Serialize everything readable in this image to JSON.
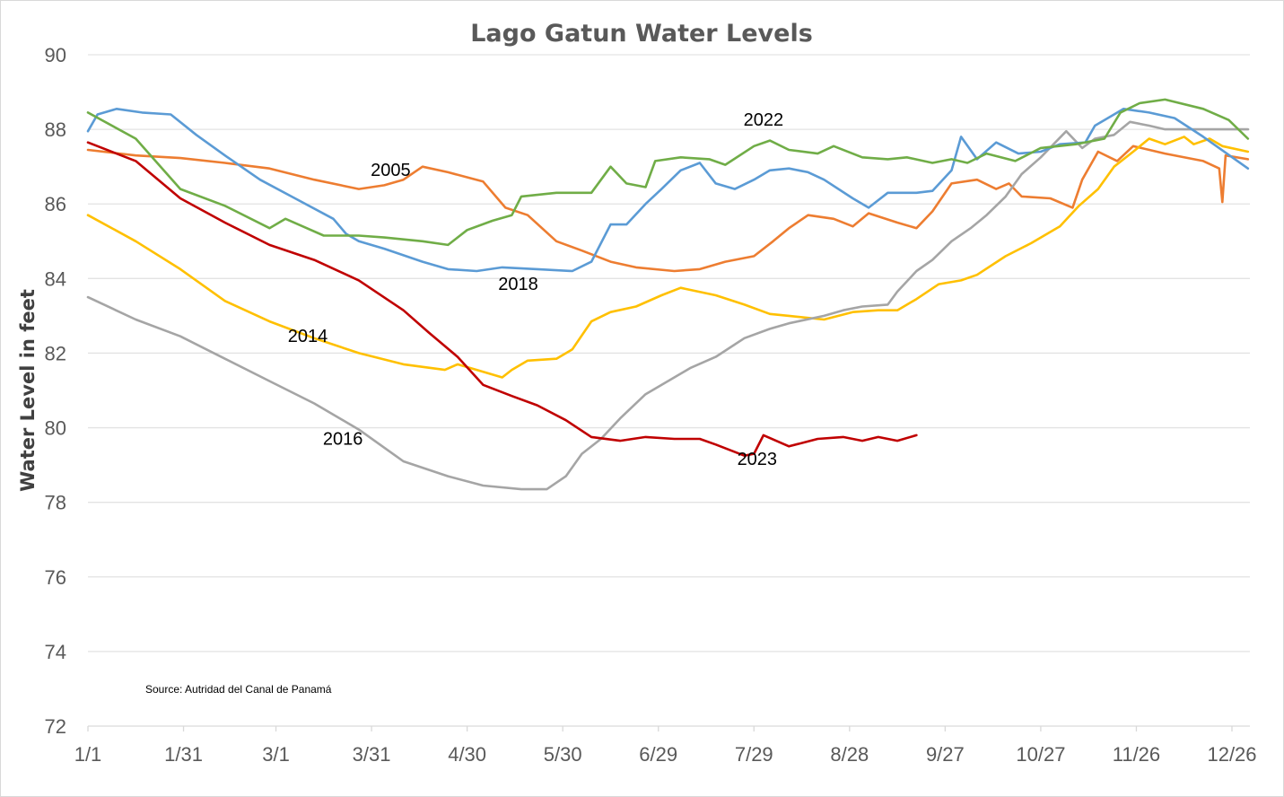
{
  "chart_data": {
    "type": "line",
    "title": "Lago Gatun Water Levels",
    "xlabel": "",
    "ylabel": "Water Level in feet",
    "source_note": "Source: Autridad del Canal de Panamá",
    "x_unit": "day of year (0 = 1/1)",
    "xlim": [
      0,
      364
    ],
    "ylim": [
      72,
      90
    ],
    "y_ticks": [
      72,
      74,
      76,
      78,
      80,
      82,
      84,
      86,
      88,
      90
    ],
    "x_ticks": [
      {
        "day": 0,
        "label": "1/1"
      },
      {
        "day": 30,
        "label": "1/31"
      },
      {
        "day": 59,
        "label": "3/1"
      },
      {
        "day": 89,
        "label": "3/31"
      },
      {
        "day": 119,
        "label": "4/30"
      },
      {
        "day": 149,
        "label": "5/30"
      },
      {
        "day": 179,
        "label": "6/29"
      },
      {
        "day": 209,
        "label": "7/29"
      },
      {
        "day": 239,
        "label": "8/28"
      },
      {
        "day": 269,
        "label": "9/27"
      },
      {
        "day": 299,
        "label": "10/27"
      },
      {
        "day": 329,
        "label": "11/26"
      },
      {
        "day": 359,
        "label": "12/26"
      }
    ],
    "grid": true,
    "legend": "none (inline labels)",
    "series": [
      {
        "name": "2005",
        "color": "#ED7D31",
        "label_at": {
          "day": 95,
          "value": 86.75
        },
        "x": [
          0,
          15,
          29,
          43,
          57,
          71,
          85,
          93,
          99,
          105,
          113,
          124,
          131,
          138,
          147,
          155,
          164,
          172,
          184,
          192,
          200,
          209,
          215,
          220,
          226,
          234,
          240,
          245,
          254,
          260,
          265,
          271,
          279,
          285,
          289,
          293,
          302,
          309,
          312,
          317,
          323,
          328,
          338,
          350,
          355,
          356,
          357,
          364
        ],
        "y": [
          87.45,
          87.3,
          87.23,
          87.1,
          86.95,
          86.65,
          86.4,
          86.5,
          86.65,
          87.0,
          86.85,
          86.6,
          85.9,
          85.7,
          85.0,
          84.75,
          84.45,
          84.3,
          84.2,
          84.25,
          84.45,
          84.6,
          85.0,
          85.35,
          85.7,
          85.6,
          85.4,
          85.75,
          85.5,
          85.35,
          85.8,
          86.55,
          86.65,
          86.4,
          86.55,
          86.2,
          86.15,
          85.9,
          86.65,
          87.4,
          87.15,
          87.55,
          87.35,
          87.15,
          86.95,
          86.05,
          87.3,
          87.2
        ]
      },
      {
        "name": "2014",
        "color": "#FFC000",
        "label_at": {
          "day": 69,
          "value": 82.3
        },
        "x": [
          0,
          15,
          29,
          43,
          57,
          71,
          85,
          99,
          112,
          116,
          122,
          130,
          133,
          138,
          147,
          152,
          158,
          164,
          172,
          180,
          186,
          197,
          206,
          214,
          220,
          231,
          240,
          248,
          254,
          260,
          267,
          274,
          279,
          288,
          296,
          305,
          311,
          317,
          322,
          328,
          333,
          338,
          344,
          347,
          352,
          356,
          364
        ],
        "y": [
          85.7,
          85.0,
          84.25,
          83.4,
          82.85,
          82.4,
          82.0,
          81.7,
          81.55,
          81.7,
          81.55,
          81.35,
          81.55,
          81.8,
          81.85,
          82.1,
          82.85,
          83.1,
          83.25,
          83.55,
          83.75,
          83.55,
          83.3,
          83.05,
          83.0,
          82.9,
          83.1,
          83.15,
          83.15,
          83.45,
          83.85,
          83.95,
          84.1,
          84.6,
          84.95,
          85.4,
          85.95,
          86.4,
          87.0,
          87.4,
          87.75,
          87.6,
          87.8,
          87.6,
          87.75,
          87.55,
          87.4
        ]
      },
      {
        "name": "2016",
        "color": "#A5A5A5",
        "label_at": {
          "day": 80,
          "value": 79.55
        },
        "x": [
          0,
          15,
          29,
          43,
          57,
          71,
          85,
          99,
          113,
          124,
          136,
          144,
          150,
          155,
          161,
          167,
          175,
          184,
          189,
          197,
          206,
          214,
          220,
          231,
          237,
          243,
          251,
          254,
          260,
          265,
          271,
          277,
          282,
          288,
          293,
          299,
          307,
          312,
          316,
          322,
          327,
          333,
          338,
          350,
          364
        ],
        "y": [
          83.5,
          82.9,
          82.45,
          81.85,
          81.25,
          80.65,
          79.95,
          79.1,
          78.7,
          78.45,
          78.35,
          78.35,
          78.7,
          79.3,
          79.7,
          80.25,
          80.9,
          81.35,
          81.6,
          81.9,
          82.4,
          82.65,
          82.8,
          83.0,
          83.15,
          83.25,
          83.3,
          83.65,
          84.2,
          84.5,
          85.0,
          85.35,
          85.7,
          86.2,
          86.8,
          87.25,
          87.95,
          87.5,
          87.75,
          87.85,
          88.2,
          88.1,
          88.0,
          88.0,
          88.0
        ]
      },
      {
        "name": "2018",
        "color": "#5B9BD5",
        "label_at": {
          "day": 135,
          "value": 83.7
        },
        "x": [
          0,
          3,
          9,
          17,
          26,
          34,
          43,
          54,
          65,
          77,
          81,
          85,
          93,
          105,
          113,
          122,
          130,
          141,
          152,
          158,
          164,
          169,
          175,
          180,
          186,
          192,
          197,
          203,
          209,
          214,
          220,
          226,
          231,
          240,
          245,
          251,
          260,
          265,
          271,
          274,
          279,
          285,
          292,
          299,
          305,
          313,
          316,
          325,
          333,
          341,
          350,
          364
        ],
        "y": [
          87.95,
          88.4,
          88.55,
          88.45,
          88.4,
          87.85,
          87.3,
          86.65,
          86.15,
          85.6,
          85.2,
          85.0,
          84.8,
          84.45,
          84.25,
          84.2,
          84.3,
          84.25,
          84.2,
          84.45,
          85.45,
          85.45,
          86.0,
          86.4,
          86.9,
          87.1,
          86.55,
          86.4,
          86.65,
          86.9,
          86.95,
          86.85,
          86.65,
          86.15,
          85.9,
          86.3,
          86.3,
          86.35,
          86.9,
          87.8,
          87.2,
          87.65,
          87.35,
          87.4,
          87.6,
          87.65,
          88.1,
          88.55,
          88.45,
          88.3,
          87.8,
          86.95
        ]
      },
      {
        "name": "2022",
        "color": "#70AD47",
        "label_at": {
          "day": 212,
          "value": 88.1
        },
        "x": [
          0,
          15,
          29,
          43,
          57,
          62,
          74,
          85,
          93,
          105,
          113,
          119,
          127,
          133,
          136,
          147,
          158,
          164,
          169,
          175,
          178,
          186,
          195,
          200,
          209,
          214,
          220,
          229,
          234,
          243,
          251,
          257,
          265,
          271,
          276,
          282,
          291,
          299,
          310,
          319,
          324,
          330,
          338,
          350,
          358,
          364
        ],
        "y": [
          88.45,
          87.75,
          86.4,
          85.95,
          85.35,
          85.6,
          85.15,
          85.15,
          85.1,
          85.0,
          84.9,
          85.3,
          85.55,
          85.7,
          86.2,
          86.3,
          86.3,
          87.0,
          86.55,
          86.45,
          87.15,
          87.25,
          87.2,
          87.05,
          87.55,
          87.7,
          87.45,
          87.35,
          87.55,
          87.25,
          87.2,
          87.25,
          87.1,
          87.2,
          87.1,
          87.35,
          87.15,
          87.5,
          87.6,
          87.75,
          88.45,
          88.7,
          88.8,
          88.55,
          88.25,
          87.75
        ]
      },
      {
        "name": "2023",
        "color": "#C00000",
        "label_at": {
          "day": 210,
          "value": 79.0
        },
        "x": [
          0,
          15,
          29,
          43,
          57,
          71,
          85,
          99,
          107,
          116,
          124,
          133,
          141,
          150,
          158,
          167,
          175,
          184,
          192,
          197,
          206,
          209,
          212,
          220,
          229,
          237,
          243,
          248,
          254,
          260
        ],
        "y": [
          87.65,
          87.15,
          86.15,
          85.5,
          84.9,
          84.5,
          83.95,
          83.15,
          82.55,
          81.9,
          81.15,
          80.85,
          80.6,
          80.2,
          79.75,
          79.65,
          79.75,
          79.7,
          79.7,
          79.55,
          79.25,
          79.3,
          79.8,
          79.5,
          79.7,
          79.75,
          79.65,
          79.75,
          79.65,
          79.8
        ]
      }
    ]
  }
}
